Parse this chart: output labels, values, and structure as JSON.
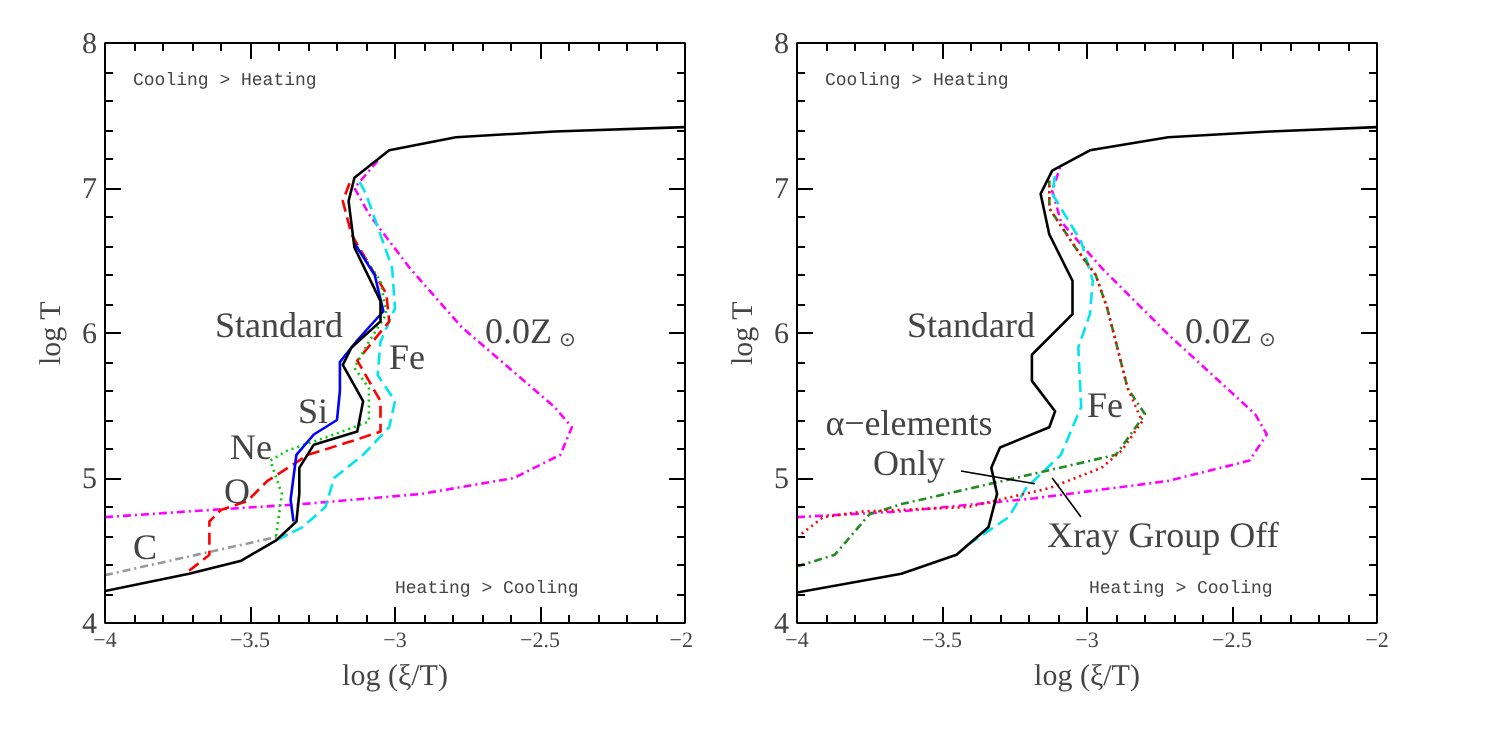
{
  "chart_data": [
    {
      "type": "line",
      "xlabel": "log (ξ/T)",
      "ylabel": "log T",
      "xlim": [
        -4,
        -2
      ],
      "ylim": [
        4,
        8
      ],
      "xticks": [
        -4,
        -3.5,
        -3,
        -2.5,
        -2
      ],
      "yticks": [
        4,
        5,
        6,
        7,
        8
      ],
      "series": [
        {
          "color": "#ff00ff",
          "line_style": "dashdot",
          "x": [
            -4,
            -3.71,
            -3.32,
            -2.91,
            -2.59,
            -2.43,
            -2.39,
            -2.45,
            -2.77,
            -2.95,
            -3.09,
            -3.14,
            -3.05
          ],
          "values": [
            4.73,
            4.77,
            4.82,
            4.89,
            5.0,
            5.16,
            5.35,
            5.49,
            6.04,
            6.45,
            6.82,
            7.0,
            7.21
          ]
        },
        {
          "color": "#999999",
          "line_style": "dashdot",
          "x": [
            -4,
            -3.37
          ],
          "values": [
            4.33,
            4.61
          ]
        },
        {
          "color": "#00e5ee",
          "line_style": "dashed",
          "x": [
            -3.41,
            -3.32,
            -3.24,
            -3.21,
            -3.11,
            -3.02,
            -3.0,
            -3.06,
            -3.05,
            -3.0,
            -3.01,
            -3.1,
            -3.13
          ],
          "values": [
            4.57,
            4.66,
            4.8,
            5.0,
            5.16,
            5.35,
            5.53,
            5.71,
            5.94,
            6.17,
            6.45,
            6.96,
            7.07
          ]
        },
        {
          "color": "#ff0000",
          "line_style": "dashed",
          "x": [
            -3.71,
            -3.64,
            -3.64,
            -3.6,
            -3.51,
            -3.44,
            -3.3,
            -3.14,
            -3.05,
            -3.05,
            -3.13,
            -3.02,
            -3.03,
            -3.15,
            -3.18,
            -3.15
          ],
          "values": [
            4.36,
            4.47,
            4.7,
            4.78,
            4.84,
            4.98,
            5.16,
            5.26,
            5.32,
            5.53,
            5.81,
            6.08,
            6.27,
            6.68,
            6.91,
            7.07
          ]
        },
        {
          "color": "#00cc00",
          "line_style": "dotted",
          "x": [
            -3.41,
            -3.39,
            -3.43,
            -3.37,
            -3.21,
            -3.09,
            -3.09,
            -3.14,
            -3.09,
            -3.03,
            -3.05,
            -3.14
          ],
          "values": [
            4.6,
            4.89,
            5.12,
            5.19,
            5.3,
            5.39,
            5.62,
            5.76,
            5.94,
            6.13,
            6.36,
            6.62
          ]
        },
        {
          "color": "#0000ff",
          "line_style": "solid",
          "x": [
            -3.35,
            -3.36,
            -3.34,
            -3.28,
            -3.2,
            -3.19,
            -3.19,
            -3.13,
            -3.04,
            -3.07,
            -3.14
          ],
          "values": [
            4.7,
            4.85,
            5.16,
            5.3,
            5.4,
            5.6,
            5.8,
            5.95,
            6.15,
            6.4,
            6.62
          ]
        },
        {
          "color": "#000000",
          "line_style": "solid",
          "x": [
            -4,
            -3.71,
            -3.53,
            -3.41,
            -3.34,
            -3.33,
            -3.33,
            -3.28,
            -3.13,
            -3.11,
            -3.18,
            -3.15,
            -3.05,
            -3.05,
            -3.14,
            -3.16,
            -3.14,
            -3.02,
            -2.79,
            -2.45,
            -2
          ],
          "values": [
            4.22,
            4.34,
            4.43,
            4.57,
            4.7,
            4.89,
            5.07,
            5.23,
            5.32,
            5.53,
            5.78,
            5.9,
            6.08,
            6.22,
            6.59,
            6.91,
            7.07,
            7.26,
            7.35,
            7.39,
            7.42
          ]
        }
      ],
      "annotations": [
        "Cooling > Heating",
        "Heating > Cooling",
        "Standard",
        "Fe",
        "Si",
        "Ne",
        "O",
        "C",
        "0.0Z$_{⊙}$"
      ]
    },
    {
      "type": "line",
      "xlabel": "log (ξ/T)",
      "ylabel": "log T",
      "xlim": [
        -4,
        -2
      ],
      "ylim": [
        4,
        8
      ],
      "xticks": [
        -4,
        -3.5,
        -3,
        -2.5,
        -2
      ],
      "yticks": [
        4,
        5,
        6,
        7,
        8
      ],
      "series": [
        {
          "color": "#ff00ff",
          "line_style": "dashdot",
          "x": [
            -4,
            -3.64,
            -3.18,
            -2.72,
            -2.44,
            -2.38,
            -2.42,
            -2.72,
            -2.95,
            -3.09,
            -3.12,
            -3.09
          ],
          "values": [
            4.73,
            4.77,
            4.86,
            4.98,
            5.12,
            5.3,
            5.44,
            5.99,
            6.45,
            6.77,
            6.98,
            7.16
          ]
        },
        {
          "color": "#00e5ee",
          "line_style": "dashed",
          "x": [
            -3.41,
            -3.27,
            -3.21,
            -3.09,
            -3.02,
            -3.03,
            -2.99,
            -2.98,
            -3.02,
            -3.12,
            -3.11
          ],
          "values": [
            4.54,
            4.73,
            4.93,
            5.16,
            5.49,
            5.9,
            6.13,
            6.36,
            6.63,
            6.96,
            7.09
          ]
        },
        {
          "color": "#228b22",
          "line_style": "dashdot",
          "x": [
            -4,
            -3.87,
            -3.75,
            -3.64,
            -3.29,
            -2.9,
            -2.8,
            -2.86,
            -2.93,
            -2.97,
            -3.04,
            -3.13,
            -3.13
          ],
          "values": [
            4.39,
            4.47,
            4.75,
            4.82,
            4.98,
            5.16,
            5.44,
            5.62,
            6.17,
            6.4,
            6.59,
            6.86,
            7.05
          ]
        },
        {
          "color": "#ff0000",
          "line_style": "dotted",
          "x": [
            -4,
            -3.91,
            -3.77,
            -3.41,
            -3.13,
            -2.95,
            -2.88,
            -2.81,
            -2.86,
            -2.93,
            -2.97,
            -3.04,
            -3.13,
            -3.13
          ],
          "values": [
            4.59,
            4.73,
            4.77,
            4.8,
            4.93,
            5.07,
            5.19,
            5.39,
            5.62,
            6.17,
            6.4,
            6.59,
            6.86,
            7.05
          ]
        },
        {
          "color": "#000000",
          "line_style": "solid",
          "x": [
            -4,
            -3.64,
            -3.45,
            -3.34,
            -3.31,
            -3.33,
            -3.3,
            -3.13,
            -3.11,
            -3.19,
            -3.19,
            -3.05,
            -3.05,
            -3.13,
            -3.16,
            -3.12,
            -2.99,
            -2.72,
            -2.37,
            -2
          ],
          "values": [
            4.21,
            4.34,
            4.47,
            4.66,
            4.89,
            5.07,
            5.21,
            5.35,
            5.46,
            5.67,
            5.85,
            6.13,
            6.36,
            6.68,
            6.96,
            7.12,
            7.26,
            7.35,
            7.39,
            7.42
          ]
        }
      ],
      "annotations": [
        "Cooling > Heating",
        "Heating > Cooling",
        "Standard",
        "Fe",
        "0.0Z$_{⊙}$",
        {
          "text": "α−elements\nOnly",
          "x": -3.18,
          "y": 4.96
        },
        {
          "text": "Xray Group Off",
          "x": -3.12,
          "y": 5.0
        }
      ]
    }
  ]
}
